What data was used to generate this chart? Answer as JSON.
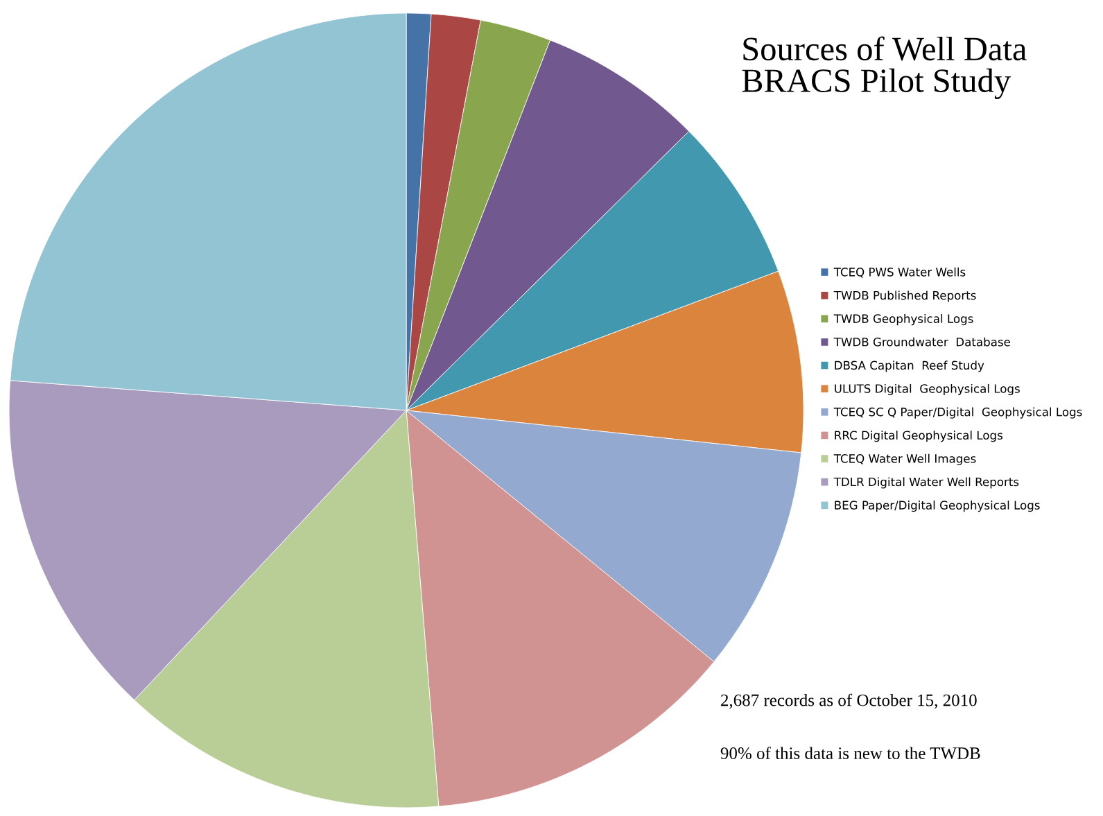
{
  "chart_data": {
    "type": "pie",
    "title": "Sources of Well Data\nBRACS Pilot Study",
    "categories": [
      "TCEQ PWS Water Wells",
      "TWDB Published Reports",
      "TWDB Geophysical Logs",
      "TWDB Groundwater  Database",
      "DBSA Capitan  Reef Study",
      "ULUTS Digital  Geophysical Logs",
      "TCEQ SC Q Paper/Digital  Geophysical Logs",
      "RRC Digital Geophysical Logs",
      "TCEQ Water Well Images",
      "TDLR Digital Water Well Reports",
      "BEG Paper/Digital Geophysical Logs"
    ],
    "values": [
      1.0,
      2.0,
      2.9,
      6.7,
      6.7,
      7.4,
      9.2,
      12.8,
      13.3,
      14.2,
      23.8
    ],
    "colors": [
      "#4572a7",
      "#aa4643",
      "#89a54e",
      "#71588f",
      "#4198af",
      "#db843d",
      "#93a9cf",
      "#d19392",
      "#b9cd96",
      "#a99bbd",
      "#93c4d4"
    ],
    "legend": "right",
    "annotations": [
      "2,687 records as of October 15, 2010",
      "90% of this data is new to the TWDB"
    ]
  }
}
